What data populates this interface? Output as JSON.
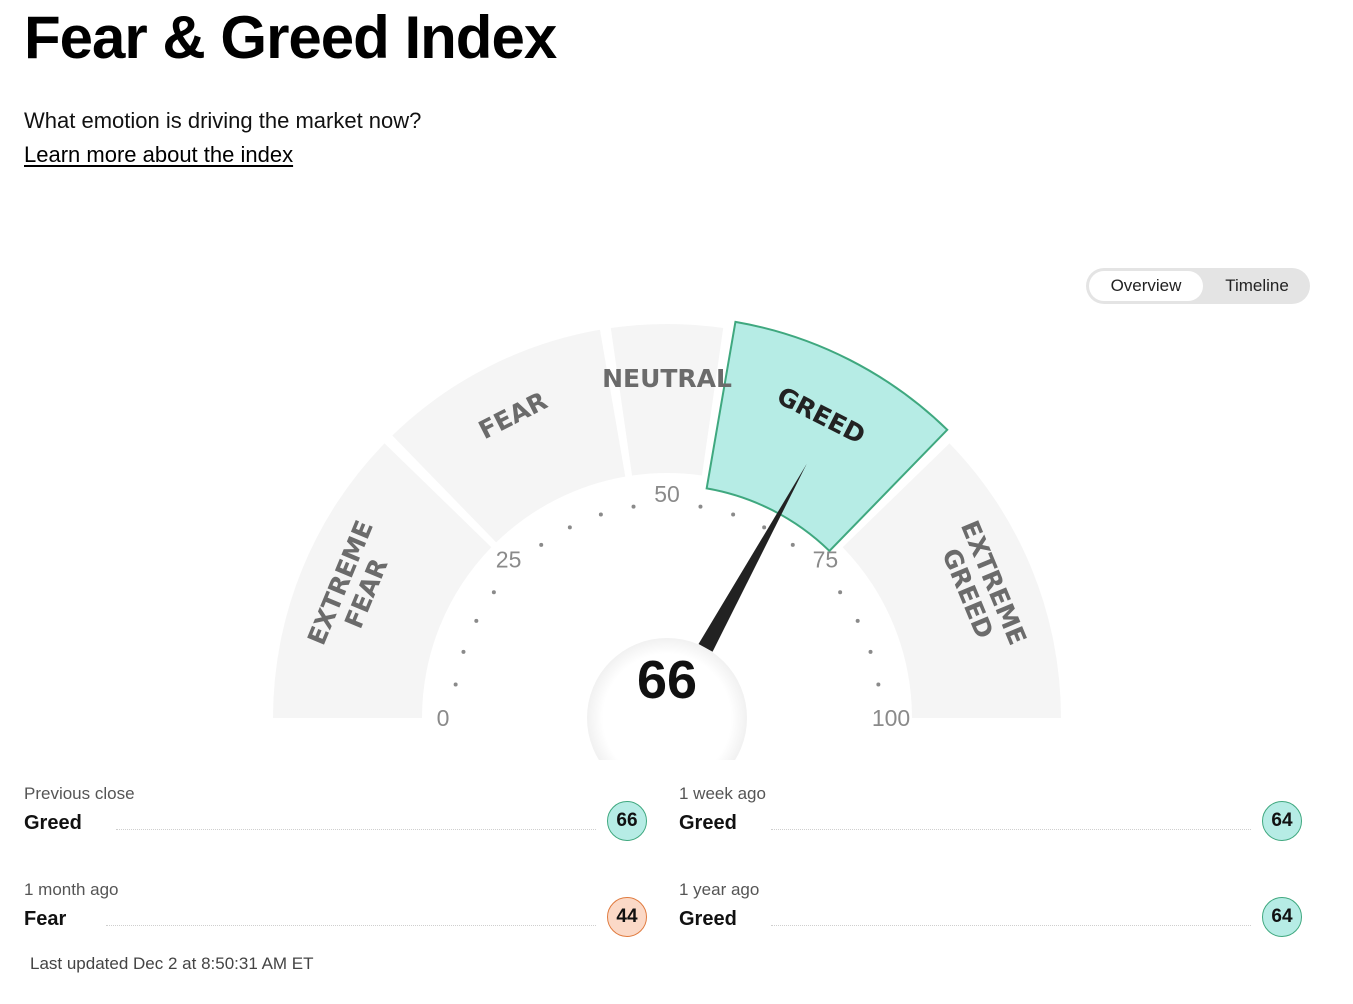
{
  "header": {
    "title": "Fear & Greed Index",
    "subtitle": "What emotion is driving the market now?",
    "learn_more": "Learn more about the index"
  },
  "view_toggle": {
    "options": [
      "Overview",
      "Timeline"
    ],
    "selected": "Overview"
  },
  "gauge": {
    "value": 66,
    "value_label": "66",
    "segments": [
      {
        "label_lines": [
          "EXTREME",
          "FEAR"
        ],
        "range": [
          0,
          25
        ],
        "active": false
      },
      {
        "label_lines": [
          "FEAR"
        ],
        "range": [
          25,
          45
        ],
        "active": false
      },
      {
        "label_lines": [
          "NEUTRAL"
        ],
        "range": [
          45,
          55
        ],
        "active": false
      },
      {
        "label_lines": [
          "GREED"
        ],
        "range": [
          55,
          75
        ],
        "active": true
      },
      {
        "label_lines": [
          "EXTREME",
          "GREED"
        ],
        "range": [
          75,
          100
        ],
        "active": false
      }
    ],
    "scale_labels": [
      "0",
      "25",
      "50",
      "75",
      "100"
    ],
    "colors": {
      "segment_bg": "#f5f5f5",
      "active_fill": "#b6ece5",
      "active_stroke": "#3fa87f",
      "needle": "#222222"
    }
  },
  "history": [
    {
      "label": "Previous close",
      "rating": "Greed",
      "value": "66",
      "sentiment": "greed"
    },
    {
      "label": "1 week ago",
      "rating": "Greed",
      "value": "64",
      "sentiment": "greed"
    },
    {
      "label": "1 month ago",
      "rating": "Fear",
      "value": "44",
      "sentiment": "fear"
    },
    {
      "label": "1 year ago",
      "rating": "Greed",
      "value": "64",
      "sentiment": "greed"
    }
  ],
  "colors": {
    "greed_badge_bg": "#b6ece5",
    "greed_badge_border": "#3fa87f",
    "fear_badge_bg": "#fbd9c7",
    "fear_badge_border": "#e07b3f"
  },
  "footer": {
    "last_updated": "Last updated Dec 2 at 8:50:31 AM ET"
  }
}
